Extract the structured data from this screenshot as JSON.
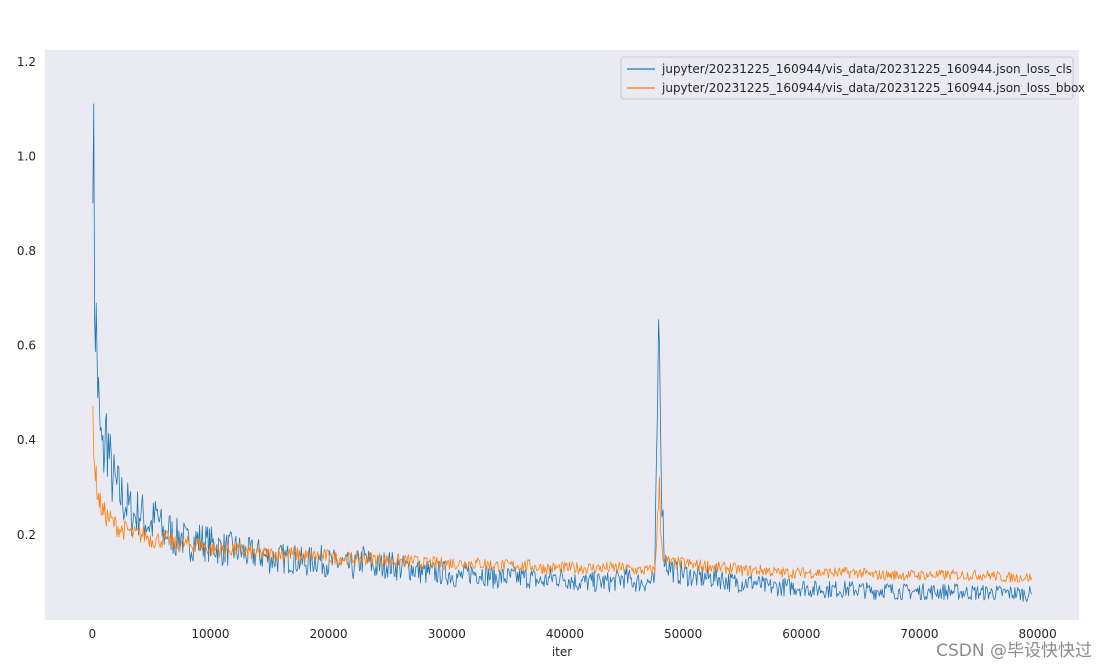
{
  "chart_data": {
    "type": "line",
    "title": "",
    "xlabel": "iter",
    "ylabel": "",
    "xlim": [
      -4000,
      83500
    ],
    "ylim": [
      0.02,
      1.225
    ],
    "xticks": [
      0,
      10000,
      20000,
      30000,
      40000,
      50000,
      60000,
      70000,
      80000
    ],
    "yticks": [
      0.2,
      0.4,
      0.6,
      0.8,
      1.0,
      1.2
    ],
    "xtick_labels": [
      "0",
      "10000",
      "20000",
      "30000",
      "40000",
      "50000",
      "60000",
      "70000",
      "80000"
    ],
    "ytick_labels": [
      "0.2",
      "0.4",
      "0.6",
      "0.8",
      "1.0",
      "1.2"
    ],
    "grid": false,
    "legend_position": "top-right",
    "series": [
      {
        "name": "jupyter/20231225_160944/vis_data/20231225_160944.json_loss_cls",
        "color": "#1f77b4",
        "x": [
          50,
          200,
          400,
          600,
          900,
          1200,
          1600,
          2000,
          2500,
          3000,
          3500,
          4000,
          4500,
          5000,
          5500,
          6000,
          6500,
          7000,
          7500,
          8000,
          9000,
          10000,
          11000,
          12000,
          13000,
          14000,
          15000,
          16000,
          17000,
          18000,
          19000,
          20000,
          21000,
          22000,
          23000,
          24000,
          25000,
          26000,
          27000,
          28000,
          29000,
          30000,
          31000,
          32000,
          33000,
          34000,
          35000,
          36000,
          37000,
          38000,
          39000,
          40000,
          41000,
          42000,
          43000,
          44000,
          45000,
          46000,
          47000,
          47600,
          48000,
          48100,
          48200,
          48300,
          48400,
          48600,
          49000,
          49500,
          50000,
          51000,
          52000,
          53000,
          54000,
          55000,
          56000,
          57000,
          58000,
          59000,
          60000,
          61000,
          62000,
          63000,
          64000,
          65000,
          66000,
          67000,
          68000,
          69000,
          70000,
          71000,
          72000,
          73000,
          74000,
          75000,
          76000,
          77000,
          78000,
          79000,
          79500
        ],
        "y": [
          1.155,
          0.72,
          0.58,
          0.43,
          0.36,
          0.42,
          0.33,
          0.3,
          0.28,
          0.26,
          0.24,
          0.25,
          0.23,
          0.22,
          0.24,
          0.2,
          0.21,
          0.19,
          0.2,
          0.18,
          0.19,
          0.18,
          0.17,
          0.17,
          0.16,
          0.16,
          0.15,
          0.15,
          0.15,
          0.14,
          0.15,
          0.14,
          0.14,
          0.13,
          0.15,
          0.13,
          0.14,
          0.13,
          0.13,
          0.12,
          0.12,
          0.12,
          0.11,
          0.12,
          0.12,
          0.11,
          0.11,
          0.11,
          0.11,
          0.1,
          0.11,
          0.11,
          0.1,
          0.1,
          0.1,
          0.1,
          0.11,
          0.1,
          0.1,
          0.1,
          0.75,
          0.45,
          0.3,
          0.22,
          0.16,
          0.14,
          0.13,
          0.12,
          0.12,
          0.11,
          0.11,
          0.11,
          0.1,
          0.1,
          0.1,
          0.09,
          0.09,
          0.09,
          0.09,
          0.085,
          0.085,
          0.085,
          0.085,
          0.085,
          0.08,
          0.085,
          0.08,
          0.08,
          0.08,
          0.08,
          0.08,
          0.08,
          0.078,
          0.078,
          0.078,
          0.077,
          0.077,
          0.075,
          0.075
        ]
      },
      {
        "name": "jupyter/20231225_160944/vis_data/20231225_160944.json_loss_bbox",
        "color": "#ff7f0e",
        "x": [
          50,
          200,
          400,
          600,
          900,
          1200,
          1600,
          2000,
          2500,
          3000,
          3500,
          4000,
          4500,
          5000,
          5500,
          6000,
          6500,
          7000,
          7500,
          8000,
          9000,
          10000,
          11000,
          12000,
          13000,
          14000,
          15000,
          16000,
          17000,
          18000,
          19000,
          20000,
          21000,
          22000,
          23000,
          24000,
          25000,
          26000,
          27000,
          28000,
          29000,
          30000,
          31000,
          32000,
          33000,
          34000,
          35000,
          36000,
          37000,
          38000,
          39000,
          40000,
          41000,
          42000,
          43000,
          44000,
          45000,
          46000,
          47000,
          47600,
          48000,
          48100,
          48200,
          48300,
          48400,
          48600,
          49000,
          49500,
          50000,
          51000,
          52000,
          53000,
          54000,
          55000,
          56000,
          57000,
          58000,
          59000,
          60000,
          61000,
          62000,
          63000,
          64000,
          65000,
          66000,
          67000,
          68000,
          69000,
          70000,
          71000,
          72000,
          73000,
          74000,
          75000,
          76000,
          77000,
          78000,
          79000,
          79500
        ],
        "y": [
          0.46,
          0.35,
          0.3,
          0.27,
          0.25,
          0.24,
          0.23,
          0.22,
          0.21,
          0.21,
          0.2,
          0.2,
          0.2,
          0.19,
          0.19,
          0.19,
          0.19,
          0.18,
          0.18,
          0.18,
          0.18,
          0.17,
          0.17,
          0.17,
          0.165,
          0.16,
          0.16,
          0.16,
          0.16,
          0.155,
          0.155,
          0.155,
          0.15,
          0.15,
          0.15,
          0.15,
          0.145,
          0.145,
          0.145,
          0.14,
          0.14,
          0.14,
          0.14,
          0.14,
          0.14,
          0.135,
          0.135,
          0.135,
          0.135,
          0.13,
          0.13,
          0.13,
          0.13,
          0.13,
          0.13,
          0.13,
          0.13,
          0.125,
          0.125,
          0.125,
          0.3,
          0.22,
          0.18,
          0.16,
          0.15,
          0.145,
          0.14,
          0.14,
          0.14,
          0.135,
          0.135,
          0.13,
          0.13,
          0.125,
          0.125,
          0.125,
          0.12,
          0.12,
          0.12,
          0.12,
          0.12,
          0.12,
          0.12,
          0.12,
          0.115,
          0.115,
          0.115,
          0.115,
          0.115,
          0.115,
          0.115,
          0.115,
          0.115,
          0.115,
          0.115,
          0.11,
          0.11,
          0.11,
          0.11
        ]
      }
    ]
  },
  "watermark": "CSDN @毕设快快过"
}
